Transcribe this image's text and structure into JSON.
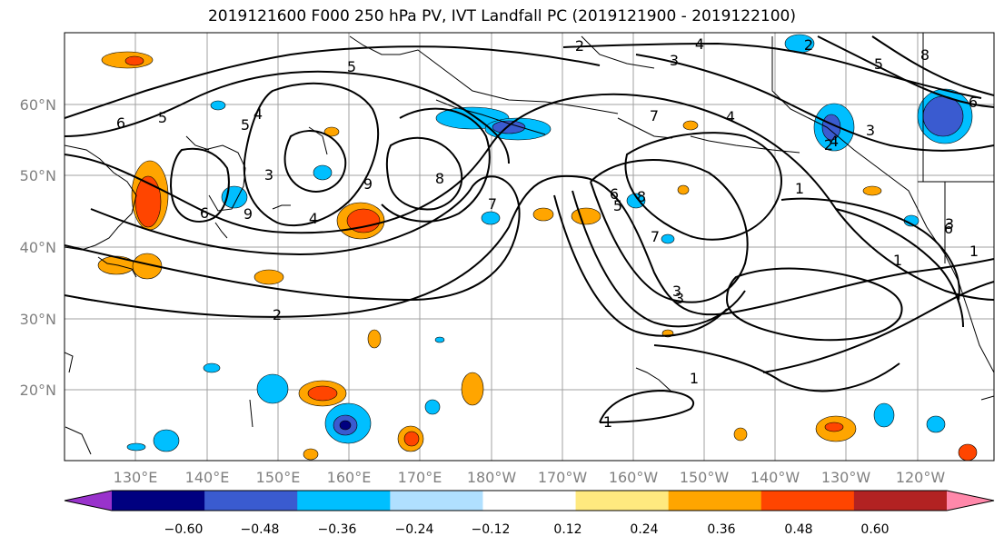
{
  "title": "2019121600 F000 250 hPa PV, IVT Landfall PC (2019121900 - 2019122100)",
  "map": {
    "lon_labels": [
      "130°E",
      "140°E",
      "150°E",
      "160°E",
      "170°E",
      "180°W",
      "170°W",
      "160°W",
      "150°W",
      "140°W",
      "130°W",
      "120°W"
    ],
    "lat_labels": [
      "60°N",
      "50°N",
      "40°N",
      "30°N",
      "20°N"
    ],
    "contour_labels": [
      "2",
      "4",
      "5",
      "6",
      "3",
      "5",
      "4",
      "6",
      "4",
      "5",
      "3",
      "9",
      "8",
      "9",
      "2",
      "7",
      "5",
      "4",
      "3",
      "8",
      "7",
      "4",
      "6",
      "5",
      "7",
      "3",
      "1",
      "1",
      "2",
      "3",
      "1",
      "6",
      "3",
      "1",
      "8",
      "6",
      "2",
      "1"
    ]
  },
  "colorbar": {
    "ticks": [
      "−0.60",
      "−0.48",
      "−0.36",
      "−0.24",
      "−0.12",
      "0.12",
      "0.24",
      "0.36",
      "0.48",
      "0.60"
    ],
    "colors": [
      "#9932cc",
      "#000080",
      "#3a5bd0",
      "#00bfff",
      "#b0e0ff",
      "#ffffff",
      "#ffe97f",
      "#ffa500",
      "#ff4500",
      "#b22222",
      "#ff88aa"
    ]
  }
}
